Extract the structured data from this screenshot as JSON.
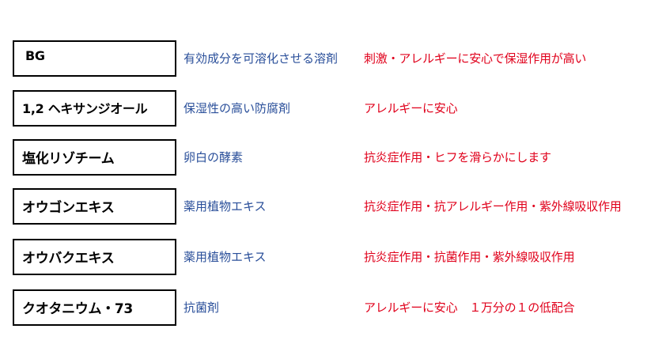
{
  "ingredients": [
    {
      "name": "BG",
      "role": "有効成分を可溶化させる溶剤",
      "effect": "刺激・アレルギーに安心で保湿作用が高い"
    },
    {
      "name": "1,2 ヘキサンジオール",
      "role": "保湿性の高い防腐剤",
      "effect": "アレルギーに安心"
    },
    {
      "name": "塩化リゾチーム",
      "role": "卵白の酵素",
      "effect": "抗炎症作用・ヒフを滑らかにします"
    },
    {
      "name": "オウゴンエキス",
      "role": "薬用植物エキス",
      "effect": "抗炎症作用・抗アレルギー作用・紫外線吸収作用"
    },
    {
      "name": "オウバクエキス",
      "role": "薬用植物エキス",
      "effect": "抗炎症作用・抗菌作用・紫外線吸収作用"
    },
    {
      "name": "クオタニウム・73",
      "role": "抗菌剤",
      "effect": "アレルギーに安心　１万分の１の低配合"
    }
  ]
}
